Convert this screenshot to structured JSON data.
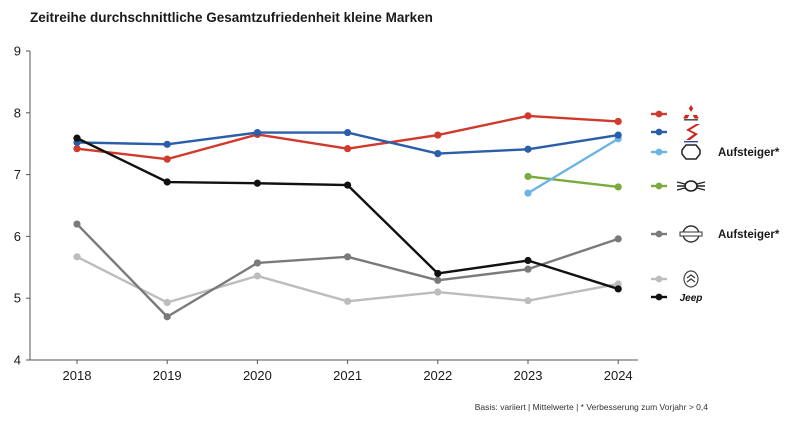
{
  "chart_data": {
    "type": "line",
    "title": "Zeitreihe durchschnittliche Gesamtzufriedenheit kleine Marken",
    "xlabel": "",
    "ylabel": "",
    "categories": [
      "2018",
      "2019",
      "2020",
      "2021",
      "2022",
      "2023",
      "2024"
    ],
    "ylim": [
      4,
      9
    ],
    "yticks": [
      "4",
      "5",
      "6",
      "7",
      "8",
      "9"
    ],
    "grid": false,
    "legend_position": "right",
    "series": [
      {
        "name": "Mitsubishi",
        "color": "#d03a2c",
        "icon": "mitsubishi-logo-icon",
        "values": [
          7.42,
          7.25,
          7.65,
          7.42,
          7.64,
          7.95,
          7.86
        ],
        "tag": ""
      },
      {
        "name": "Suzuki",
        "color": "#2a5ea8",
        "icon": "suzuki-logo-icon",
        "values": [
          7.52,
          7.49,
          7.68,
          7.68,
          7.34,
          7.41,
          7.64
        ],
        "tag": ""
      },
      {
        "name": "MG",
        "color": "#6cb4e4",
        "icon": "mg-logo-icon",
        "values": [
          null,
          null,
          null,
          null,
          null,
          6.7,
          7.58
        ],
        "tag": "Aufsteiger*"
      },
      {
        "name": "MINI",
        "color": "#7aab3c",
        "icon": "mini-logo-icon",
        "values": [
          null,
          null,
          null,
          null,
          null,
          6.97,
          6.8
        ],
        "tag": ""
      },
      {
        "name": "Nissan",
        "color": "#7a7a7a",
        "icon": "nissan-logo-icon",
        "values": [
          6.2,
          4.7,
          5.57,
          5.67,
          5.29,
          5.47,
          5.96
        ],
        "tag": "Aufsteiger*"
      },
      {
        "name": "Citroën",
        "color": "#bdbdbd",
        "icon": "citroen-logo-icon",
        "values": [
          5.67,
          4.93,
          5.36,
          4.95,
          5.1,
          4.96,
          5.23
        ],
        "tag": ""
      },
      {
        "name": "Jeep",
        "color": "#111111",
        "icon": "jeep-logo-icon",
        "values": [
          7.59,
          6.88,
          6.86,
          6.83,
          5.4,
          5.61,
          5.15
        ],
        "tag": "",
        "brand_text": "Jeep"
      }
    ],
    "footnote": "Basis: variiert | Mittelwerte | * Verbesserung zum Vorjahr > 0,4"
  }
}
